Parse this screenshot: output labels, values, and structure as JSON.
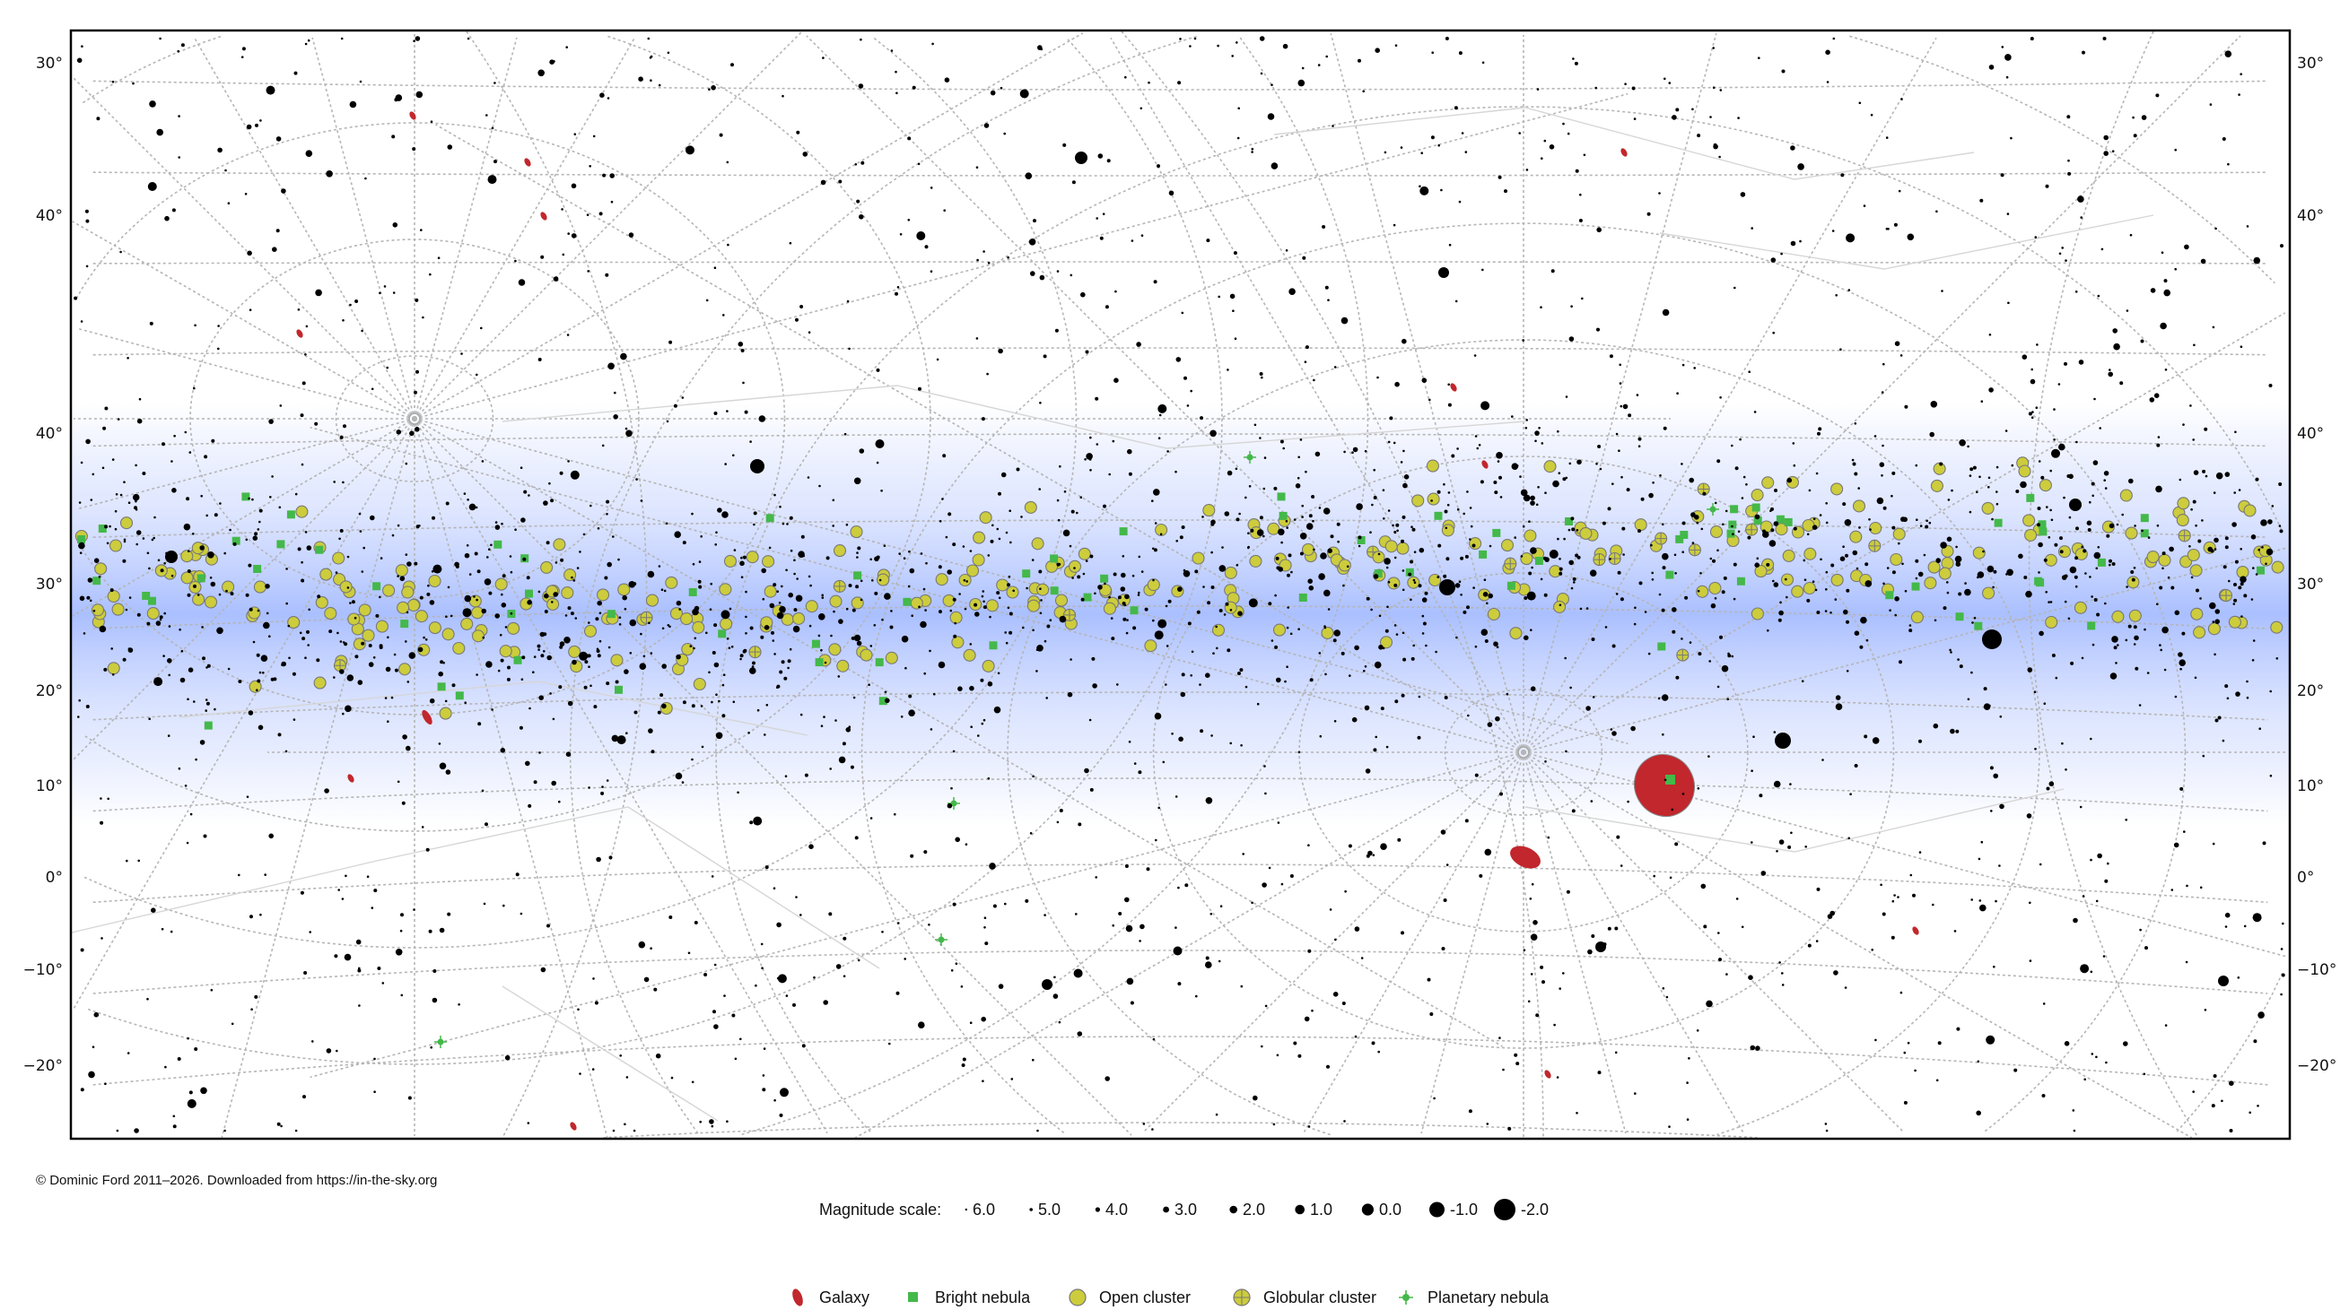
{
  "axis_labels_left": [
    "30°",
    "40°",
    "40°",
    "30°",
    "20°",
    "10°",
    "0°",
    "−10°",
    "−20°"
  ],
  "axis_labels_right": [
    "30°",
    "40°",
    "40°",
    "30°",
    "20°",
    "10°",
    "0°",
    "−10°",
    "−20°"
  ],
  "copyright": "© Dominic Ford 2011–2026. Downloaded from https://in-the-sky.org",
  "magnitude_scale": {
    "label": "Magnitude scale:",
    "entries": [
      "6.0",
      "5.0",
      "4.0",
      "3.0",
      "2.0",
      "1.0",
      "0.0",
      "-1.0",
      "-2.0"
    ]
  },
  "legend": [
    {
      "label": "Galaxy",
      "icon": "galaxy-icon"
    },
    {
      "label": "Bright nebula",
      "icon": "bright-nebula-icon"
    },
    {
      "label": "Open cluster",
      "icon": "open-cluster-icon"
    },
    {
      "label": "Globular cluster",
      "icon": "globular-cluster-icon"
    },
    {
      "label": "Planetary nebula",
      "icon": "planetary-nebula-icon"
    }
  ],
  "colors": {
    "galaxy": "#c1272d",
    "bright_nebula": "#44b84a",
    "open_cluster": "#cccc3c",
    "milky_way": "#9fb6ff",
    "grid": "#b5b5b5",
    "star": "#000000"
  }
}
